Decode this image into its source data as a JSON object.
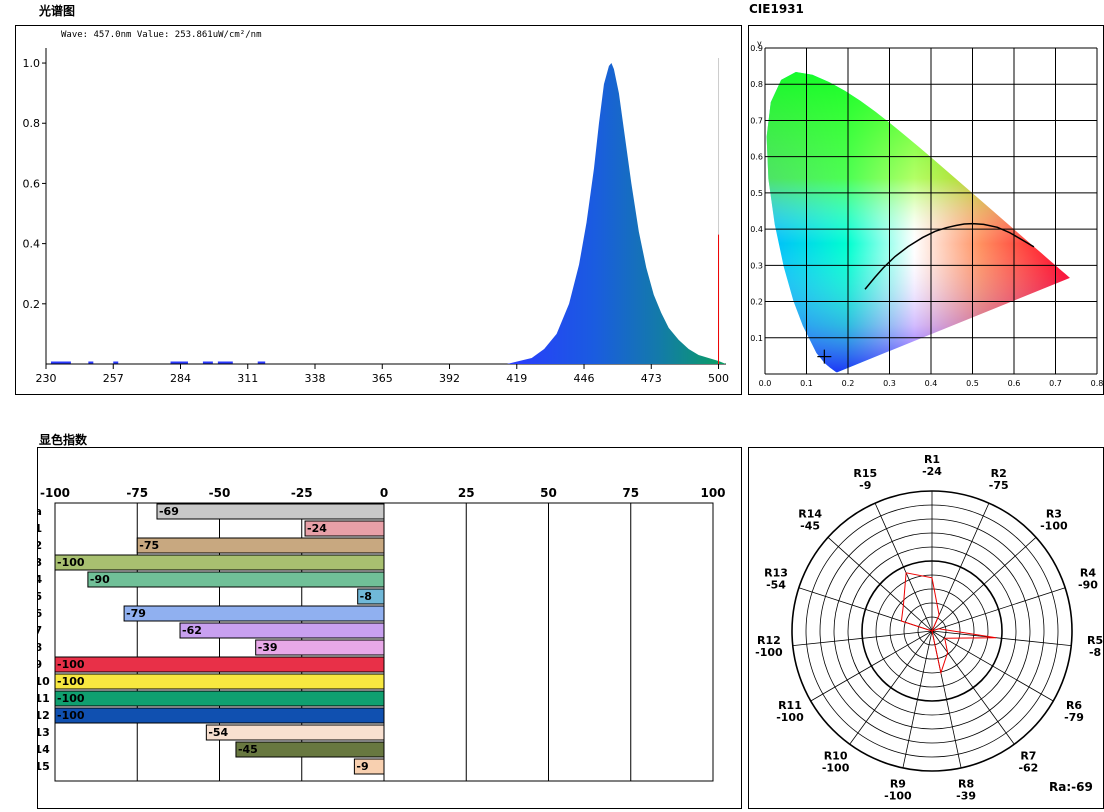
{
  "spectrum": {
    "section_title": "光谱图",
    "readout": "Wave: 457.0nm Value: 253.861uW/cm²/nm",
    "chart_data": {
      "type": "area",
      "title": "光谱图",
      "xlabel": "",
      "ylabel": "",
      "xlim": [
        230,
        503
      ],
      "ylim": [
        0,
        1.05
      ],
      "x_ticks": [
        "230",
        "257",
        "284",
        "311",
        "338",
        "365",
        "392",
        "419",
        "446",
        "473",
        "500"
      ],
      "y_ticks": [
        "0.2",
        "0.4",
        "0.6",
        "0.8",
        "1.0"
      ],
      "peak_wavelength": 457,
      "x": [
        415,
        420,
        425,
        430,
        435,
        440,
        444,
        447,
        450,
        452,
        454,
        456,
        457,
        458,
        460,
        462,
        465,
        468,
        471,
        474,
        477,
        480,
        484,
        488,
        492,
        496,
        500,
        503
      ],
      "values": [
        0.0,
        0.01,
        0.02,
        0.05,
        0.1,
        0.2,
        0.33,
        0.47,
        0.65,
        0.8,
        0.93,
        0.99,
        1.0,
        0.98,
        0.9,
        0.78,
        0.6,
        0.44,
        0.32,
        0.23,
        0.17,
        0.12,
        0.08,
        0.05,
        0.03,
        0.02,
        0.01,
        0.0
      ],
      "cursor_marker": {
        "x": 500,
        "value": 0.43
      }
    }
  },
  "cie": {
    "section_title": "CIE1931",
    "chart_data": {
      "type": "scatter",
      "title": "CIE1931",
      "xlabel": "",
      "ylabel": "y",
      "xlim": [
        0,
        0.8
      ],
      "ylim": [
        0,
        0.9
      ],
      "x_ticks": [
        "0.0",
        "0.1",
        "0.2",
        "0.3",
        "0.4",
        "0.5",
        "0.6",
        "0.7",
        "0.8"
      ],
      "y_ticks": [
        "0.1",
        "0.2",
        "0.3",
        "0.4",
        "0.5",
        "0.6",
        "0.7",
        "0.8",
        "0.9"
      ],
      "locus": [
        [
          0.1741,
          0.005
        ],
        [
          0.1738,
          0.0049
        ],
        [
          0.1714,
          0.0051
        ],
        [
          0.1644,
          0.0109
        ],
        [
          0.1566,
          0.0177
        ],
        [
          0.144,
          0.0297
        ],
        [
          0.1241,
          0.0578
        ],
        [
          0.0913,
          0.1327
        ],
        [
          0.0687,
          0.2007
        ],
        [
          0.0454,
          0.295
        ],
        [
          0.0235,
          0.4127
        ],
        [
          0.0082,
          0.5384
        ],
        [
          0.0039,
          0.6548
        ],
        [
          0.0139,
          0.7502
        ],
        [
          0.0389,
          0.812
        ],
        [
          0.0743,
          0.8338
        ],
        [
          0.1142,
          0.8262
        ],
        [
          0.1547,
          0.8059
        ],
        [
          0.1929,
          0.7816
        ],
        [
          0.2296,
          0.7543
        ],
        [
          0.2658,
          0.7243
        ],
        [
          0.3016,
          0.6923
        ],
        [
          0.3373,
          0.6589
        ],
        [
          0.3731,
          0.6245
        ],
        [
          0.4087,
          0.5896
        ],
        [
          0.4441,
          0.5547
        ],
        [
          0.4788,
          0.5202
        ],
        [
          0.5125,
          0.4866
        ],
        [
          0.5448,
          0.4544
        ],
        [
          0.5752,
          0.4242
        ],
        [
          0.6029,
          0.3965
        ],
        [
          0.627,
          0.3725
        ],
        [
          0.6482,
          0.3514
        ],
        [
          0.6658,
          0.334
        ],
        [
          0.6801,
          0.3197
        ],
        [
          0.6915,
          0.3083
        ],
        [
          0.7006,
          0.2993
        ],
        [
          0.7079,
          0.292
        ],
        [
          0.714,
          0.2859
        ],
        [
          0.719,
          0.2809
        ],
        [
          0.723,
          0.277
        ],
        [
          0.7347,
          0.2653
        ]
      ],
      "planckian_locus": [
        [
          0.241,
          0.234
        ],
        [
          0.265,
          0.267
        ],
        [
          0.285,
          0.293
        ],
        [
          0.313,
          0.324
        ],
        [
          0.345,
          0.352
        ],
        [
          0.38,
          0.377
        ],
        [
          0.41,
          0.394
        ],
        [
          0.437,
          0.404
        ],
        [
          0.46,
          0.41
        ],
        [
          0.48,
          0.414
        ],
        [
          0.5,
          0.415
        ],
        [
          0.527,
          0.413
        ],
        [
          0.56,
          0.405
        ],
        [
          0.59,
          0.39
        ],
        [
          0.62,
          0.37
        ],
        [
          0.648,
          0.351
        ]
      ],
      "measured_point": {
        "x": 0.143,
        "y": 0.048
      }
    }
  },
  "cri": {
    "section_title": "显色指数",
    "chart_data": {
      "type": "bar",
      "title": "显色指数",
      "xlim": [
        -100,
        100
      ],
      "x_ticks": [
        "-100",
        "-75",
        "-50",
        "-25",
        "0",
        "25",
        "50",
        "75",
        "100"
      ],
      "categories": [
        "Ra",
        "R1",
        "R2",
        "R3",
        "R4",
        "R5",
        "R6",
        "R7",
        "R8",
        "R9",
        "R10",
        "R11",
        "R12",
        "R13",
        "R14",
        "R15"
      ],
      "values": [
        -69,
        -24,
        -75,
        -100,
        -90,
        -8,
        -79,
        -62,
        -39,
        -100,
        -100,
        -100,
        -100,
        -54,
        -45,
        -9
      ],
      "colors": [
        "#c8c8c8",
        "#e8a0a8",
        "#c8a880",
        "#a8c070",
        "#70c098",
        "#70b8d8",
        "#90b0f0",
        "#c8a0f0",
        "#e8a8e8",
        "#e83048",
        "#f8e840",
        "#10a070",
        "#1050b0",
        "#f8e0d0",
        "#687840",
        "#f8d0b0"
      ]
    }
  },
  "polar": {
    "chart_data": {
      "type": "radar",
      "rlim": [
        -100,
        100
      ],
      "categories": [
        "R1",
        "R2",
        "R3",
        "R4",
        "R5",
        "R6",
        "R7",
        "R8",
        "R9",
        "R10",
        "R11",
        "R12",
        "R13",
        "R14",
        "R15"
      ],
      "values": [
        -24,
        -75,
        -100,
        -90,
        -8,
        -79,
        -62,
        -39,
        -100,
        -100,
        -100,
        -100,
        -54,
        -45,
        -9
      ],
      "ra_label": "Ra:-69"
    }
  }
}
